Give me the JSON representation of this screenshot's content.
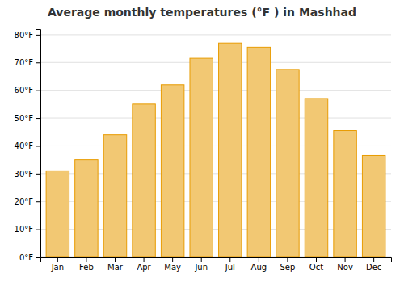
{
  "chart_data": {
    "type": "bar",
    "title": "Average monthly temperatures (°F ) in Mashhad",
    "categories": [
      "Jan",
      "Feb",
      "Mar",
      "Apr",
      "May",
      "Jun",
      "Jul",
      "Aug",
      "Sep",
      "Oct",
      "Nov",
      "Dec"
    ],
    "values": [
      31,
      35,
      44,
      55,
      62,
      71.5,
      77,
      75.5,
      67.5,
      57,
      45.5,
      36.5
    ],
    "color": "#E89B00",
    "ylim": [
      0,
      82
    ],
    "yticks": [
      {
        "value": 0,
        "label": "0°F"
      },
      {
        "value": 10,
        "label": "10°F"
      },
      {
        "value": 20,
        "label": "20°F"
      },
      {
        "value": 30,
        "label": "30°F"
      },
      {
        "value": 40,
        "label": "40°F"
      },
      {
        "value": 50,
        "label": "50°F"
      },
      {
        "value": 60,
        "label": "60°F"
      },
      {
        "value": 70,
        "label": "70°F"
      },
      {
        "value": 80,
        "label": "80°F"
      }
    ],
    "grid": true
  }
}
